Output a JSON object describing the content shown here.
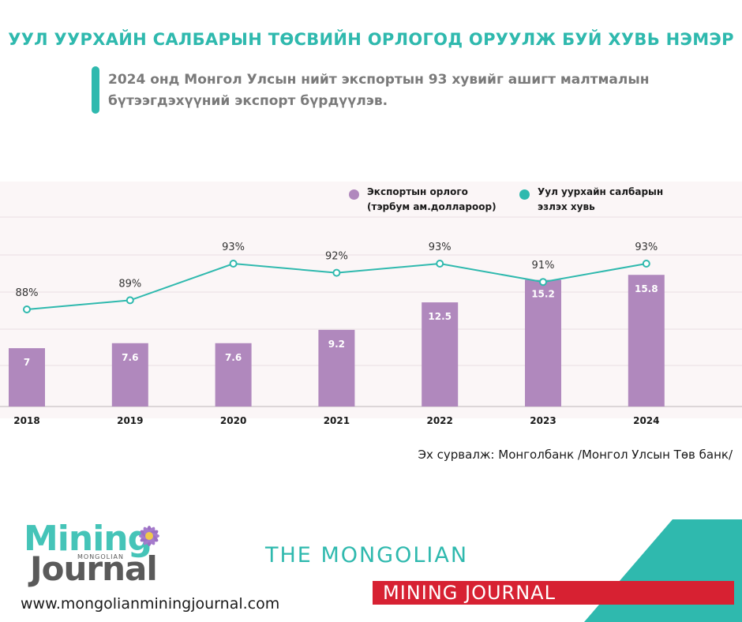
{
  "header": {
    "title": "УУЛ УУРХАЙН САЛБАРЫН ТӨСВИЙН ОРЛОГОД ОРУУЛЖ БУЙ ХУВЬ НЭМЭР",
    "subtitle": "2024 онд Монгол Улсын нийт экспортын 93 хувийг ашигт малтмалын бүтээгдэхүүний экспорт бүрдүүлэв."
  },
  "chart_data": {
    "type": "bar+line",
    "categories": [
      "2018",
      "2019",
      "2020",
      "2021",
      "2022",
      "2023",
      "2024"
    ],
    "series": [
      {
        "name": "Экспортын орлого (тэрбум ам.доллароор)",
        "kind": "bar",
        "color": "#b088bd",
        "values": [
          7,
          7.6,
          7.6,
          9.2,
          12.5,
          15.2,
          15.8
        ],
        "labels": [
          "7",
          "7.6",
          "7.6",
          "9.2",
          "12.5",
          "15.2",
          "15.8"
        ]
      },
      {
        "name": "Уул уурхайн салбарын эзлэх хувь",
        "kind": "line",
        "color": "#2fb9ae",
        "values": [
          88,
          89,
          93,
          92,
          93,
          91,
          93
        ],
        "labels": [
          "88%",
          "89%",
          "93%",
          "92%",
          "93%",
          "91%",
          "93%"
        ]
      }
    ],
    "bar_ylim": [
      0,
      27
    ],
    "line_ylim": [
      82,
      95
    ],
    "grid": true,
    "legend_position": "top-right"
  },
  "source": "Эх сурвалж: Монголбанк /Монгол Улсын Төв банк/",
  "footer": {
    "logo_word1": "Mining",
    "logo_word2": "Journal",
    "logo_small": "MONGOLIAN",
    "website": "www.mongolianminingjournal.com",
    "brand_line1": "THE MONGOLIAN",
    "brand_line2": "MINING JOURNAL"
  },
  "colors": {
    "accent": "#2fb9ae",
    "bar": "#b088bd",
    "brand_red": "#d72132",
    "panel_bg": "#fbf6f7"
  }
}
